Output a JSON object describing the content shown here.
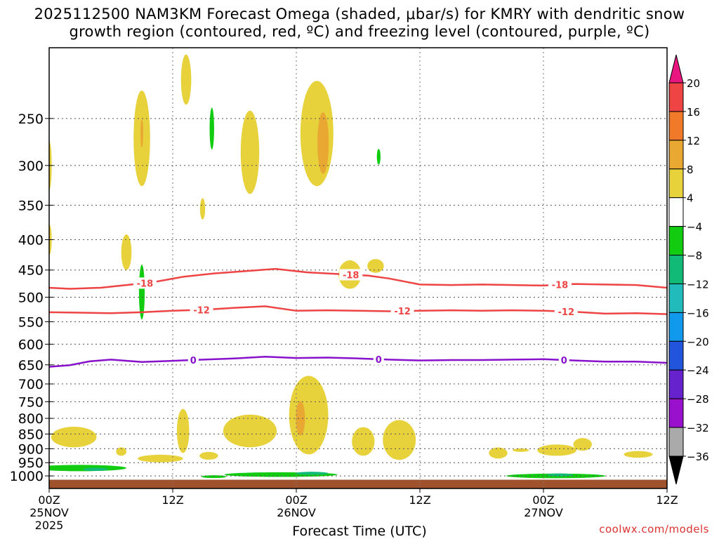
{
  "title": "2025112500 NAM3KM Forecast Omega (shaded, μbar/s) for KMRY with dendritic snow",
  "title_line2": "growth region (contoured, red, ºC) and freezing level (contoured, purple, ºC)",
  "credit": "coolwx.com/models",
  "chart_data": {
    "type": "contour",
    "title": "2025112500 NAM3KM Forecast Omega (shaded, μbar/s) for KMRY with dendritic snow growth region (contoured, red, ºC) and freezing level (contoured, purple, ºC)",
    "xlabel": "Forecast Time (UTC)",
    "ylabel": "",
    "x_range_hours": [
      0,
      60
    ],
    "y_range_hPa": [
      1050,
      190
    ],
    "y_ticks": [
      250,
      300,
      350,
      400,
      450,
      500,
      550,
      600,
      650,
      700,
      750,
      800,
      850,
      900,
      950,
      1000
    ],
    "x_ticks": [
      {
        "h": 0,
        "l1": "00Z",
        "l2": "25NOV",
        "l3": "2025"
      },
      {
        "h": 12,
        "l1": "12Z",
        "l2": "",
        "l3": ""
      },
      {
        "h": 24,
        "l1": "00Z",
        "l2": "26NOV",
        "l3": ""
      },
      {
        "h": 36,
        "l1": "12Z",
        "l2": "",
        "l3": ""
      },
      {
        "h": 48,
        "l1": "00Z",
        "l2": "27NOV",
        "l3": ""
      },
      {
        "h": 60,
        "l1": "12Z",
        "l2": "",
        "l3": ""
      }
    ],
    "grid": true,
    "colorbar": {
      "labels": [
        "20",
        "16",
        "12",
        "8",
        "4",
        "−4",
        "−8",
        "−12",
        "−16",
        "−20",
        "−24",
        "−28",
        "−32",
        "−36"
      ],
      "colors": [
        "#ee4444",
        "#f07a2a",
        "#e8a832",
        "#e8d23c",
        "#ffffff",
        "#11cc11",
        "#11bb77",
        "#22bbbb",
        "#1199ee",
        "#2255dd",
        "#6622cc",
        "#9911cc",
        "#aaaaaa"
      ],
      "top_color": "#e8167e",
      "bottom_color": "#000000"
    },
    "omega_regions": [
      {
        "h": 0.0,
        "p": 300,
        "dh": 0.25,
        "dp": 30,
        "v": 4
      },
      {
        "h": 0.0,
        "p": 400,
        "dh": 0.25,
        "dp": 25,
        "v": 4
      },
      {
        "h": 9.0,
        "p": 270,
        "dh": 0.8,
        "dp": 55,
        "v": 4
      },
      {
        "h": 9.0,
        "p": 265,
        "dh": 0.12,
        "dp": 15,
        "v": 8
      },
      {
        "h": 13.3,
        "p": 215,
        "dh": 0.5,
        "dp": 22,
        "v": 4
      },
      {
        "h": 15.8,
        "p": 260,
        "dh": 0.22,
        "dp": 22,
        "v": -4
      },
      {
        "h": 14.9,
        "p": 355,
        "dh": 0.25,
        "dp": 15,
        "v": 4
      },
      {
        "h": 19.5,
        "p": 285,
        "dh": 0.9,
        "dp": 50,
        "v": 4
      },
      {
        "h": 26.0,
        "p": 265,
        "dh": 1.6,
        "dp": 60,
        "v": 4
      },
      {
        "h": 26.6,
        "p": 275,
        "dh": 0.55,
        "dp": 35,
        "v": 8
      },
      {
        "h": 32.0,
        "p": 290,
        "dh": 0.18,
        "dp": 9,
        "v": -4
      },
      {
        "h": 7.5,
        "p": 420,
        "dh": 0.5,
        "dp": 30,
        "v": 4
      },
      {
        "h": 29.2,
        "p": 458,
        "dh": 1.1,
        "dp": 26,
        "v": 4
      },
      {
        "h": 31.7,
        "p": 443,
        "dh": 0.8,
        "dp": 12,
        "v": 4
      },
      {
        "h": 9.0,
        "p": 490,
        "dh": 0.28,
        "dp": 55,
        "v": -4
      },
      {
        "h": 2.4,
        "p": 860,
        "dh": 2.2,
        "dp": 35,
        "v": 4
      },
      {
        "h": 7.0,
        "p": 910,
        "dh": 0.5,
        "dp": 15,
        "v": 4
      },
      {
        "h": 10.8,
        "p": 935,
        "dh": 2.2,
        "dp": 14,
        "v": 4
      },
      {
        "h": 13.0,
        "p": 840,
        "dh": 0.6,
        "dp": 75,
        "v": 4
      },
      {
        "h": 15.5,
        "p": 925,
        "dh": 0.9,
        "dp": 14,
        "v": 4
      },
      {
        "h": 19.5,
        "p": 840,
        "dh": 2.6,
        "dp": 55,
        "v": 4
      },
      {
        "h": 25.2,
        "p": 790,
        "dh": 1.9,
        "dp": 130,
        "v": 4
      },
      {
        "h": 24.4,
        "p": 800,
        "dh": 0.45,
        "dp": 55,
        "v": 8
      },
      {
        "h": 30.5,
        "p": 875,
        "dh": 1.1,
        "dp": 50,
        "v": 4
      },
      {
        "h": 34.0,
        "p": 870,
        "dh": 1.6,
        "dp": 70,
        "v": 4
      },
      {
        "h": 43.6,
        "p": 915,
        "dh": 0.9,
        "dp": 20,
        "v": 4
      },
      {
        "h": 45.8,
        "p": 905,
        "dh": 0.8,
        "dp": 6,
        "v": 4
      },
      {
        "h": 49.3,
        "p": 905,
        "dh": 1.9,
        "dp": 20,
        "v": 4
      },
      {
        "h": 51.8,
        "p": 885,
        "dh": 0.9,
        "dp": 22,
        "v": 4
      },
      {
        "h": 57.2,
        "p": 920,
        "dh": 1.4,
        "dp": 12,
        "v": 4
      },
      {
        "h": 3.0,
        "p": 970,
        "dh": 4.5,
        "dp": 12,
        "v": -4
      },
      {
        "h": 4.5,
        "p": 975,
        "dh": 1.2,
        "dp": 6,
        "v": -8
      },
      {
        "h": 16.0,
        "p": 1003,
        "dh": 1.2,
        "dp": 5,
        "v": -4
      },
      {
        "h": 22.5,
        "p": 995,
        "dh": 5.5,
        "dp": 9,
        "v": -4
      },
      {
        "h": 25.5,
        "p": 990,
        "dh": 1.6,
        "dp": 6,
        "v": -8
      },
      {
        "h": 49.2,
        "p": 1000,
        "dh": 4.8,
        "dp": 9,
        "v": -4
      },
      {
        "h": 49.6,
        "p": 996,
        "dh": 1.3,
        "dp": 5,
        "v": -8
      }
    ],
    "contours": [
      {
        "name": "-18",
        "color": "#ee4444",
        "labels_at_h": [
          9.3,
          29.3,
          49.6
        ],
        "points": [
          [
            0,
            482
          ],
          [
            2,
            484
          ],
          [
            5,
            482
          ],
          [
            8,
            476
          ],
          [
            10,
            472
          ],
          [
            13,
            462
          ],
          [
            16,
            456
          ],
          [
            19,
            452
          ],
          [
            22,
            448
          ],
          [
            25,
            454
          ],
          [
            28,
            457
          ],
          [
            31,
            460
          ],
          [
            33,
            465
          ],
          [
            36,
            476
          ],
          [
            39,
            477
          ],
          [
            42,
            476
          ],
          [
            45,
            477
          ],
          [
            48,
            478
          ],
          [
            51,
            475
          ],
          [
            54,
            476
          ],
          [
            57,
            477
          ],
          [
            60,
            482
          ]
        ]
      },
      {
        "name": "-12",
        "color": "#ee4444",
        "labels_at_h": [
          14.8,
          34.3,
          50.2
        ],
        "points": [
          [
            0,
            530
          ],
          [
            3,
            531
          ],
          [
            6,
            532
          ],
          [
            9,
            530
          ],
          [
            12,
            527
          ],
          [
            15,
            525
          ],
          [
            18,
            521
          ],
          [
            21,
            518
          ],
          [
            24,
            527
          ],
          [
            27,
            526
          ],
          [
            30,
            527
          ],
          [
            33,
            528
          ],
          [
            36,
            527
          ],
          [
            39,
            526
          ],
          [
            42,
            527
          ],
          [
            45,
            526
          ],
          [
            48,
            527
          ],
          [
            51,
            529
          ],
          [
            54,
            533
          ],
          [
            57,
            532
          ],
          [
            60,
            534
          ]
        ]
      },
      {
        "name": "0",
        "color": "#8811cc",
        "labels_at_h": [
          14.0,
          32.0,
          50.0
        ],
        "points": [
          [
            0,
            655
          ],
          [
            2,
            651
          ],
          [
            4,
            641
          ],
          [
            6,
            637
          ],
          [
            9,
            643
          ],
          [
            12,
            640
          ],
          [
            15,
            637
          ],
          [
            18,
            634
          ],
          [
            21,
            630
          ],
          [
            24,
            633
          ],
          [
            27,
            632
          ],
          [
            30,
            634
          ],
          [
            33,
            637
          ],
          [
            36,
            639
          ],
          [
            39,
            638
          ],
          [
            42,
            638
          ],
          [
            45,
            637
          ],
          [
            48,
            636
          ],
          [
            51,
            639
          ],
          [
            54,
            642
          ],
          [
            57,
            642
          ],
          [
            60,
            645
          ]
        ]
      }
    ]
  }
}
